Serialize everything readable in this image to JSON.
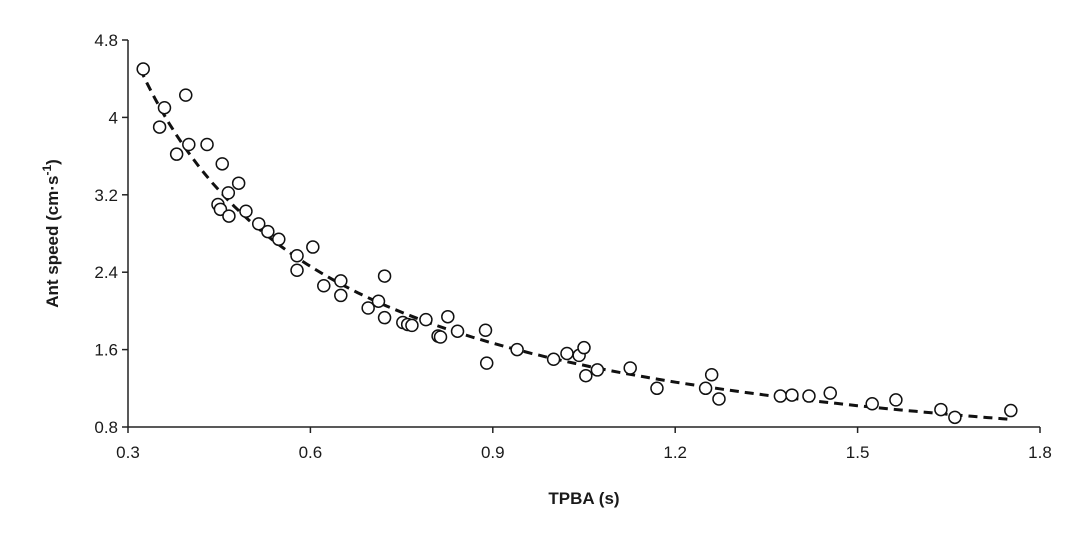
{
  "chart_data": {
    "type": "scatter",
    "xlabel": "TPBA (s)",
    "ylabel": {
      "main": "Ant speed (cm·s",
      "superscript": "-1",
      "close": ")"
    },
    "xlim": [
      0.3,
      1.8
    ],
    "ylim": [
      0.8,
      4.8
    ],
    "x_ticks": [
      "0.3",
      "0.6",
      "0.9",
      "1.2",
      "1.5",
      "1.8"
    ],
    "y_ticks": [
      "0.8",
      "1.6",
      "2.4",
      "3.2",
      "4",
      "4.8"
    ],
    "grid": false,
    "legend": "none",
    "marker": "open-circle",
    "fit_line": {
      "style": "dashed",
      "model": "power",
      "approx_points": [
        [
          0.32,
          4.5
        ],
        [
          0.5,
          2.95
        ],
        [
          0.8,
          1.86
        ],
        [
          1.2,
          1.25
        ],
        [
          1.75,
          0.88
        ]
      ]
    },
    "points": [
      [
        0.325,
        4.5
      ],
      [
        0.36,
        4.1
      ],
      [
        0.395,
        4.23
      ],
      [
        0.352,
        3.9
      ],
      [
        0.4,
        3.72
      ],
      [
        0.43,
        3.72
      ],
      [
        0.38,
        3.62
      ],
      [
        0.455,
        3.52
      ],
      [
        0.482,
        3.32
      ],
      [
        0.465,
        3.22
      ],
      [
        0.448,
        3.1
      ],
      [
        0.452,
        3.05
      ],
      [
        0.466,
        2.98
      ],
      [
        0.494,
        3.03
      ],
      [
        0.515,
        2.9
      ],
      [
        0.53,
        2.82
      ],
      [
        0.548,
        2.74
      ],
      [
        0.604,
        2.66
      ],
      [
        0.578,
        2.57
      ],
      [
        0.578,
        2.42
      ],
      [
        0.65,
        2.31
      ],
      [
        0.722,
        2.36
      ],
      [
        0.622,
        2.26
      ],
      [
        0.65,
        2.16
      ],
      [
        0.712,
        2.1
      ],
      [
        0.695,
        2.03
      ],
      [
        0.722,
        1.93
      ],
      [
        0.752,
        1.88
      ],
      [
        0.76,
        1.86
      ],
      [
        0.767,
        1.85
      ],
      [
        0.79,
        1.91
      ],
      [
        0.826,
        1.94
      ],
      [
        0.842,
        1.79
      ],
      [
        0.81,
        1.74
      ],
      [
        0.814,
        1.73
      ],
      [
        0.888,
        1.8
      ],
      [
        0.94,
        1.6
      ],
      [
        0.89,
        1.46
      ],
      [
        1.0,
        1.5
      ],
      [
        1.022,
        1.56
      ],
      [
        1.042,
        1.54
      ],
      [
        1.05,
        1.62
      ],
      [
        1.072,
        1.39
      ],
      [
        1.053,
        1.33
      ],
      [
        1.126,
        1.41
      ],
      [
        1.17,
        1.2
      ],
      [
        1.25,
        1.2
      ],
      [
        1.26,
        1.34
      ],
      [
        1.272,
        1.09
      ],
      [
        1.373,
        1.12
      ],
      [
        1.392,
        1.13
      ],
      [
        1.42,
        1.12
      ],
      [
        1.455,
        1.15
      ],
      [
        1.524,
        1.04
      ],
      [
        1.563,
        1.08
      ],
      [
        1.637,
        0.98
      ],
      [
        1.66,
        0.9
      ],
      [
        1.752,
        0.97
      ]
    ]
  }
}
